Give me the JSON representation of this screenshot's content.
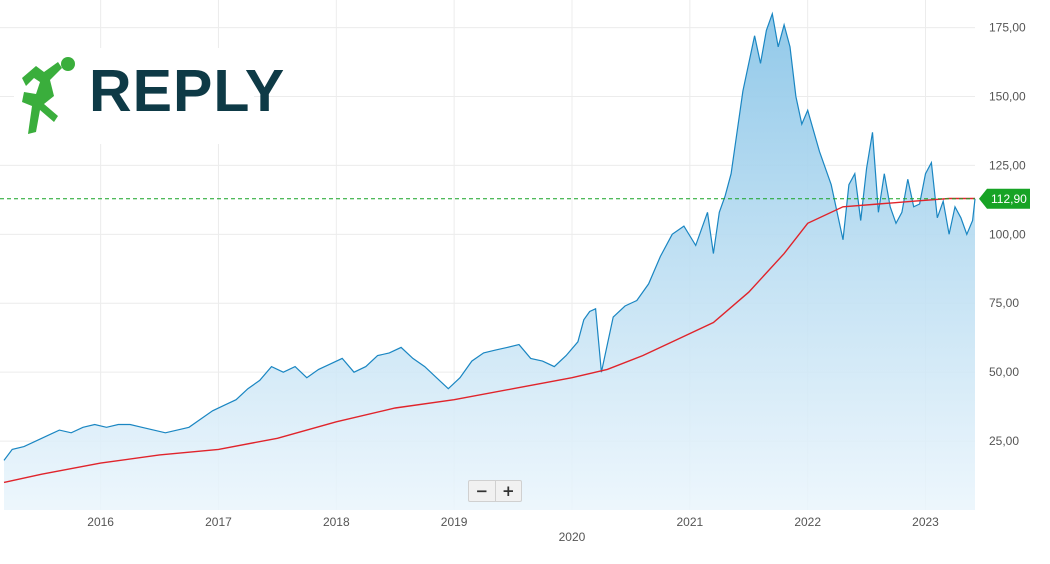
{
  "logo": {
    "text": "REPLY"
  },
  "zoom": {
    "minus": "−",
    "plus": "+"
  },
  "colors": {
    "price_line": "#1a86c2",
    "area_fill_top": "#8cc6e8",
    "moving_average": "#e0242b",
    "current_price_marker": "#17a325",
    "logo_text": "#0e3a46",
    "logo_figure": "#3aae3c"
  },
  "chart_data": {
    "type": "area",
    "title": "",
    "xlabel": "",
    "ylabel": "",
    "x_ticks": [
      "2016",
      "2017",
      "2018",
      "2019",
      "2020",
      "2021",
      "2022",
      "2023"
    ],
    "y_ticks": [
      "25,00",
      "50,00",
      "75,00",
      "100,00",
      "125,00",
      "150,00",
      "175,00"
    ],
    "ylim": [
      0,
      185
    ],
    "xlim": [
      2015.18,
      2023.42
    ],
    "grid": true,
    "y_axis_position": "right",
    "current_price": {
      "value": 112.9,
      "label": "112,90"
    },
    "series": [
      {
        "x": [
          2015.18,
          2015.25,
          2015.35,
          2015.45,
          2015.55,
          2015.65,
          2015.75,
          2015.85,
          2015.95,
          2016.05,
          2016.15,
          2016.25,
          2016.35,
          2016.45,
          2016.55,
          2016.65,
          2016.75,
          2016.85,
          2016.95,
          2017.05,
          2017.15,
          2017.25,
          2017.35,
          2017.45,
          2017.55,
          2017.65,
          2017.75,
          2017.85,
          2017.95,
          2018.05,
          2018.15,
          2018.25,
          2018.35,
          2018.45,
          2018.55,
          2018.65,
          2018.75,
          2018.85,
          2018.95,
          2019.05,
          2019.15,
          2019.25,
          2019.35,
          2019.45,
          2019.55,
          2019.65,
          2019.75,
          2019.85,
          2019.95,
          2020.05,
          2020.1,
          2020.15,
          2020.2,
          2020.25,
          2020.3,
          2020.35,
          2020.45,
          2020.55,
          2020.65,
          2020.75,
          2020.85,
          2020.95,
          2021.05,
          2021.15,
          2021.2,
          2021.25,
          2021.3,
          2021.35,
          2021.45,
          2021.55,
          2021.6,
          2021.65,
          2021.7,
          2021.75,
          2021.8,
          2021.85,
          2021.9,
          2021.95,
          2022.0,
          2022.1,
          2022.2,
          2022.3,
          2022.35,
          2022.4,
          2022.45,
          2022.5,
          2022.55,
          2022.6,
          2022.65,
          2022.7,
          2022.75,
          2022.8,
          2022.85,
          2022.9,
          2022.95,
          2023.0,
          2023.05,
          2023.1,
          2023.15,
          2023.2,
          2023.25,
          2023.3,
          2023.35,
          2023.4,
          2023.42
        ],
        "values": [
          18,
          22,
          23,
          25,
          27,
          29,
          28,
          30,
          31,
          30,
          31,
          31,
          30,
          29,
          28,
          29,
          30,
          33,
          36,
          38,
          40,
          44,
          47,
          52,
          50,
          52,
          48,
          51,
          53,
          55,
          50,
          52,
          56,
          57,
          59,
          55,
          52,
          48,
          44,
          48,
          54,
          57,
          58,
          59,
          60,
          55,
          54,
          52,
          56,
          61,
          69,
          72,
          73,
          50,
          60,
          70,
          74,
          76,
          82,
          92,
          100,
          103,
          96,
          108,
          93,
          108,
          114,
          122,
          152,
          172,
          162,
          174,
          180,
          168,
          176,
          168,
          150,
          140,
          145,
          130,
          118,
          98,
          118,
          122,
          105,
          124,
          137,
          108,
          122,
          110,
          104,
          108,
          120,
          110,
          111,
          122,
          126,
          106,
          112,
          100,
          110,
          106,
          100,
          105,
          112.9
        ]
      },
      {
        "name": "",
        "x": [
          2015.18,
          2015.5,
          2016.0,
          2016.5,
          2017.0,
          2017.5,
          2018.0,
          2018.5,
          2019.0,
          2019.5,
          2020.0,
          2020.3,
          2020.6,
          2020.9,
          2021.2,
          2021.5,
          2021.8,
          2022.0,
          2022.3,
          2022.6,
          2022.9,
          2023.2,
          2023.42
        ],
        "values": [
          10,
          13,
          17,
          20,
          22,
          26,
          32,
          37,
          40,
          44,
          48,
          51,
          56,
          62,
          68,
          79,
          93,
          104,
          110,
          111,
          112,
          113,
          113
        ]
      }
    ]
  }
}
